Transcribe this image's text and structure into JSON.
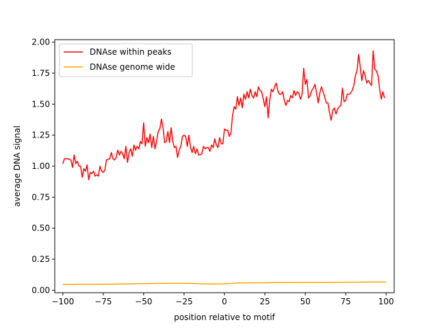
{
  "chart_data": {
    "type": "line",
    "title": "",
    "xlabel": "position relative to motif",
    "ylabel": "average DNA signal",
    "xlim": [
      -105,
      105
    ],
    "ylim": [
      -0.02,
      2.02
    ],
    "xticks": [
      -100,
      -75,
      -50,
      -25,
      0,
      25,
      50,
      75,
      100
    ],
    "xtick_labels": [
      "−100",
      "−75",
      "−50",
      "−25",
      "0",
      "25",
      "50",
      "75",
      "100"
    ],
    "yticks": [
      0.0,
      0.25,
      0.5,
      0.75,
      1.0,
      1.25,
      1.5,
      1.75,
      2.0
    ],
    "ytick_labels": [
      "0.00",
      "0.25",
      "0.50",
      "0.75",
      "1.00",
      "1.25",
      "1.50",
      "1.75",
      "2.00"
    ],
    "grid": false,
    "legend_position": "top-left",
    "series": [
      {
        "name": "DNAse within peaks",
        "color": "#ff0000",
        "points": [
          [
            -100,
            1.02
          ],
          [
            -99,
            1.06
          ],
          [
            -97,
            1.06
          ],
          [
            -95,
            1.05
          ],
          [
            -94,
            0.99
          ],
          [
            -93,
            1.09
          ],
          [
            -92,
            1.02
          ],
          [
            -91,
            1.04
          ],
          [
            -90,
            1.0
          ],
          [
            -89,
            1.0
          ],
          [
            -88,
            0.91
          ],
          [
            -87,
            0.98
          ],
          [
            -86,
            0.96
          ],
          [
            -85,
            1.01
          ],
          [
            -84,
            0.89
          ],
          [
            -83,
            0.95
          ],
          [
            -82,
            0.94
          ],
          [
            -81,
            0.96
          ],
          [
            -80,
            0.92
          ],
          [
            -79,
            0.93
          ],
          [
            -78,
            0.92
          ],
          [
            -77,
            1.0
          ],
          [
            -76,
            0.96
          ],
          [
            -75,
            0.95
          ],
          [
            -74,
            0.97
          ],
          [
            -73,
            1.05
          ],
          [
            -71,
            1.06
          ],
          [
            -70,
            1.11
          ],
          [
            -69,
            1.06
          ],
          [
            -68,
            1.05
          ],
          [
            -67,
            1.07
          ],
          [
            -66,
            1.13
          ],
          [
            -65,
            1.09
          ],
          [
            -64,
            1.12
          ],
          [
            -63,
            1.1
          ],
          [
            -62,
            1.06
          ],
          [
            -61,
            1.16
          ],
          [
            -60,
            1.03
          ],
          [
            -59,
            1.11
          ],
          [
            -58,
            1.14
          ],
          [
            -57,
            1.08
          ],
          [
            -56,
            1.17
          ],
          [
            -55,
            1.13
          ],
          [
            -54,
            1.16
          ],
          [
            -53,
            1.14
          ],
          [
            -52,
            1.2
          ],
          [
            -51,
            1.18
          ],
          [
            -50,
            1.35
          ],
          [
            -49,
            1.16
          ],
          [
            -48,
            1.23
          ],
          [
            -47,
            1.19
          ],
          [
            -46,
            1.26
          ],
          [
            -45,
            1.15
          ],
          [
            -44,
            1.24
          ],
          [
            -43,
            1.14
          ],
          [
            -42,
            1.2
          ],
          [
            -41,
            1.28
          ],
          [
            -40,
            1.3
          ],
          [
            -39,
            1.38
          ],
          [
            -38,
            1.31
          ],
          [
            -37,
            1.19
          ],
          [
            -36,
            1.2
          ],
          [
            -35,
            1.28
          ],
          [
            -34,
            1.19
          ],
          [
            -33,
            1.31
          ],
          [
            -32,
            1.2
          ],
          [
            -31,
            1.15
          ],
          [
            -30,
            1.16
          ],
          [
            -29,
            1.07
          ],
          [
            -28,
            1.13
          ],
          [
            -27,
            1.16
          ],
          [
            -26,
            1.24
          ],
          [
            -25,
            1.25
          ],
          [
            -24,
            1.24
          ],
          [
            -23,
            1.16
          ],
          [
            -22,
            1.25
          ],
          [
            -21,
            1.15
          ],
          [
            -20,
            1.11
          ],
          [
            -19,
            1.16
          ],
          [
            -18,
            1.1
          ],
          [
            -17,
            1.14
          ],
          [
            -16,
            1.09
          ],
          [
            -15,
            1.09
          ],
          [
            -14,
            1.1
          ],
          [
            -13,
            1.16
          ],
          [
            -12,
            1.14
          ],
          [
            -11,
            1.15
          ],
          [
            -10,
            1.15
          ],
          [
            -9,
            1.12
          ],
          [
            -8,
            1.17
          ],
          [
            -7,
            1.15
          ],
          [
            -6,
            1.22
          ],
          [
            -5,
            1.17
          ],
          [
            -4,
            1.15
          ],
          [
            -3,
            1.23
          ],
          [
            -2,
            1.18
          ],
          [
            -1,
            1.18
          ],
          [
            0,
            1.3
          ],
          [
            1,
            1.29
          ],
          [
            2,
            1.29
          ],
          [
            3,
            1.24
          ],
          [
            4,
            1.27
          ],
          [
            5,
            1.41
          ],
          [
            6,
            1.48
          ],
          [
            7,
            1.46
          ],
          [
            8,
            1.56
          ],
          [
            9,
            1.49
          ],
          [
            10,
            1.55
          ],
          [
            11,
            1.47
          ],
          [
            12,
            1.58
          ],
          [
            13,
            1.54
          ],
          [
            14,
            1.6
          ],
          [
            15,
            1.55
          ],
          [
            16,
            1.62
          ],
          [
            17,
            1.57
          ],
          [
            18,
            1.55
          ],
          [
            19,
            1.6
          ],
          [
            20,
            1.56
          ],
          [
            21,
            1.64
          ],
          [
            22,
            1.61
          ],
          [
            23,
            1.6
          ],
          [
            24,
            1.54
          ],
          [
            25,
            1.48
          ],
          [
            26,
            1.56
          ],
          [
            27,
            1.39
          ],
          [
            28,
            1.53
          ],
          [
            29,
            1.62
          ],
          [
            30,
            1.6
          ],
          [
            31,
            1.64
          ],
          [
            32,
            1.67
          ],
          [
            33,
            1.61
          ],
          [
            34,
            1.58
          ],
          [
            35,
            1.58
          ],
          [
            36,
            1.6
          ],
          [
            37,
            1.53
          ],
          [
            38,
            1.49
          ],
          [
            39,
            1.53
          ],
          [
            40,
            1.52
          ],
          [
            41,
            1.57
          ],
          [
            42,
            1.55
          ],
          [
            43,
            1.61
          ],
          [
            44,
            1.57
          ],
          [
            45,
            1.6
          ],
          [
            46,
            1.59
          ],
          [
            47,
            1.54
          ],
          [
            48,
            1.58
          ],
          [
            49,
            1.79
          ],
          [
            50,
            1.66
          ],
          [
            51,
            1.7
          ],
          [
            52,
            1.55
          ],
          [
            53,
            1.57
          ],
          [
            54,
            1.61
          ],
          [
            55,
            1.63
          ],
          [
            56,
            1.66
          ],
          [
            57,
            1.59
          ],
          [
            58,
            1.51
          ],
          [
            59,
            1.59
          ],
          [
            60,
            1.64
          ],
          [
            61,
            1.6
          ],
          [
            62,
            1.56
          ],
          [
            63,
            1.51
          ],
          [
            64,
            1.51
          ],
          [
            65,
            1.43
          ],
          [
            66,
            1.37
          ],
          [
            67,
            1.45
          ],
          [
            68,
            1.47
          ],
          [
            69,
            1.42
          ],
          [
            70,
            1.46
          ],
          [
            71,
            1.48
          ],
          [
            72,
            1.49
          ],
          [
            73,
            1.63
          ],
          [
            74,
            1.52
          ],
          [
            75,
            1.53
          ],
          [
            76,
            1.58
          ],
          [
            77,
            1.58
          ],
          [
            78,
            1.59
          ],
          [
            79,
            1.61
          ],
          [
            80,
            1.65
          ],
          [
            81,
            1.73
          ],
          [
            82,
            1.77
          ],
          [
            83,
            1.9
          ],
          [
            84,
            1.8
          ],
          [
            85,
            1.69
          ],
          [
            86,
            1.77
          ],
          [
            87,
            1.73
          ],
          [
            88,
            1.67
          ],
          [
            89,
            1.69
          ],
          [
            90,
            1.67
          ],
          [
            91,
            1.65
          ],
          [
            92,
            1.93
          ],
          [
            93,
            1.78
          ],
          [
            94,
            1.77
          ],
          [
            95,
            1.73
          ],
          [
            96,
            1.62
          ],
          [
            97,
            1.54
          ],
          [
            98,
            1.6
          ],
          [
            99,
            1.55
          ]
        ]
      },
      {
        "name": "DNAse genome wide",
        "color": "#ffa500",
        "points": [
          [
            -100,
            0.047
          ],
          [
            -90,
            0.048
          ],
          [
            -80,
            0.048
          ],
          [
            -70,
            0.049
          ],
          [
            -60,
            0.051
          ],
          [
            -50,
            0.053
          ],
          [
            -40,
            0.055
          ],
          [
            -30,
            0.056
          ],
          [
            -20,
            0.055
          ],
          [
            -15,
            0.052
          ],
          [
            -10,
            0.05
          ],
          [
            -5,
            0.05
          ],
          [
            0,
            0.052
          ],
          [
            5,
            0.056
          ],
          [
            10,
            0.059
          ],
          [
            20,
            0.06
          ],
          [
            30,
            0.061
          ],
          [
            40,
            0.062
          ],
          [
            50,
            0.063
          ],
          [
            60,
            0.063
          ],
          [
            70,
            0.064
          ],
          [
            80,
            0.065
          ],
          [
            90,
            0.066
          ],
          [
            100,
            0.066
          ]
        ]
      }
    ]
  }
}
